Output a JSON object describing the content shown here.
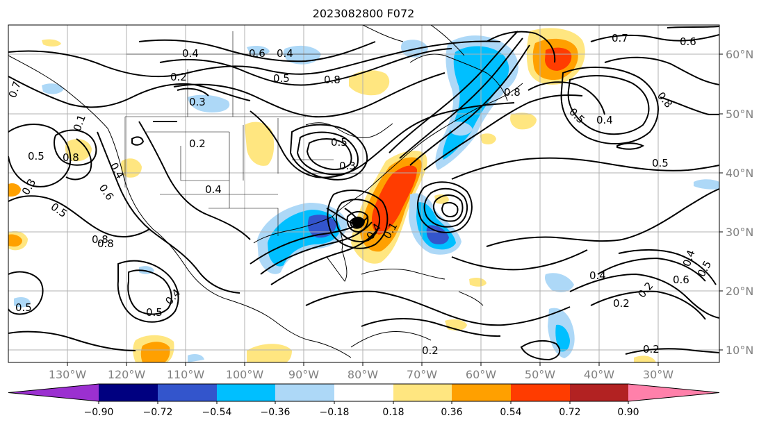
{
  "title": "2023082800 F072",
  "map": {
    "lon_labels": [
      "130°W",
      "120°W",
      "110°W",
      "100°W",
      "90°W",
      "80°W",
      "70°W",
      "60°W",
      "50°W",
      "40°W",
      "30°W"
    ],
    "lat_labels": [
      "60°N",
      "50°N",
      "40°N",
      "30°N",
      "20°N",
      "10°N"
    ],
    "contour_labels": [
      "0.7",
      "0.4",
      "0.2",
      "0.1",
      "0.6",
      "0.3",
      "0.5",
      "0.8",
      "0.4",
      "0.5",
      "0.2",
      "0.4",
      "0.3",
      "0.8",
      "0.5",
      "0.7",
      "0.8",
      "0.6",
      "0.8",
      "0.5",
      "0.4",
      "0.5",
      "0.2",
      "0.4",
      "0.8",
      "0.3",
      "0.5",
      "0.4",
      "0.6",
      "0.5",
      "0.4",
      "0.4",
      "0.2",
      "0.6",
      "0.4",
      "0.2",
      "0.8",
      "0.5",
      "0.2",
      "0.1",
      "0.5"
    ]
  },
  "colorbar": {
    "tick_labels": [
      "−0.90",
      "−0.72",
      "−0.54",
      "−0.36",
      "−0.18",
      "0.18",
      "0.36",
      "0.54",
      "0.72",
      "0.90"
    ],
    "colors": [
      "#9b30d0",
      "#000080",
      "#3355cc",
      "#00bfff",
      "#add8f7",
      "#ffffff",
      "#ffe680",
      "#ffa000",
      "#ff3c00",
      "#b22222",
      "#ff80aa"
    ]
  }
}
